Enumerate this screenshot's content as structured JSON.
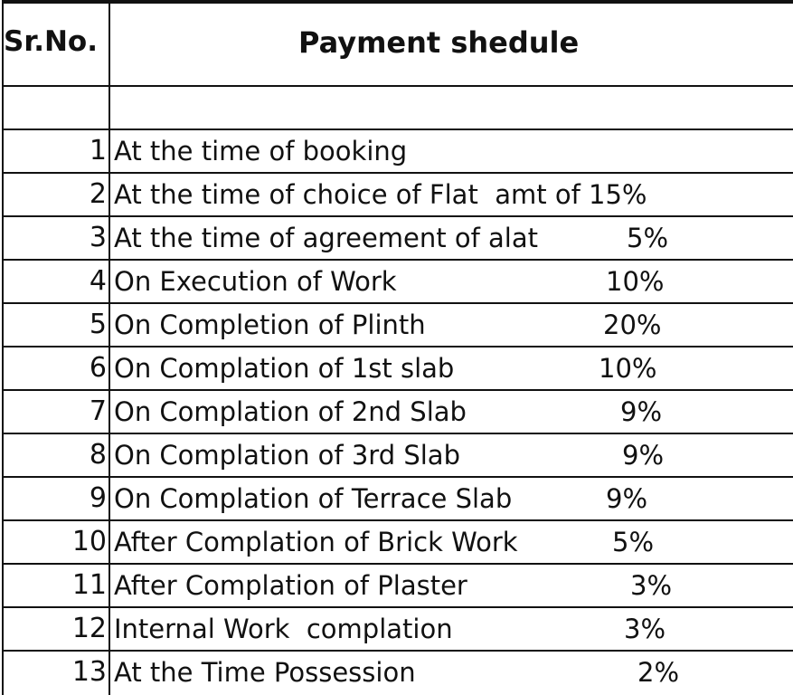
{
  "header": {
    "sr_no": "Sr.No.",
    "title": "Payment shedule"
  },
  "rows": [
    {
      "sr": "1",
      "desc": "At the time of booking",
      "pct": ""
    },
    {
      "sr": "2",
      "desc": "At the time of choice of Flat  amt of 15%",
      "pct": ""
    },
    {
      "sr": "3",
      "desc": "At the time of agreement of alat",
      "pct": "5%"
    },
    {
      "sr": "4",
      "desc": "On Execution of Work",
      "pct": "10%"
    },
    {
      "sr": "5",
      "desc": "On Completion of Plinth",
      "pct": "20%"
    },
    {
      "sr": "6",
      "desc": "On Complation of 1st slab",
      "pct": "10%"
    },
    {
      "sr": "7",
      "desc": "On Complation of 2nd Slab",
      "pct": "9%"
    },
    {
      "sr": "8",
      "desc": "On Complation of 3rd Slab",
      "pct": "9%"
    },
    {
      "sr": "9",
      "desc": "On Complation of Terrace Slab",
      "pct": "9%"
    },
    {
      "sr": "10",
      "desc": "After Complation of Brick Work",
      "pct": "5%"
    },
    {
      "sr": "11",
      "desc": "After Complation of Plaster",
      "pct": "3%"
    },
    {
      "sr": "12",
      "desc": "Internal Work  complation",
      "pct": "3%"
    },
    {
      "sr": "13",
      "desc": "At the Time Possession",
      "pct": "2%"
    }
  ]
}
